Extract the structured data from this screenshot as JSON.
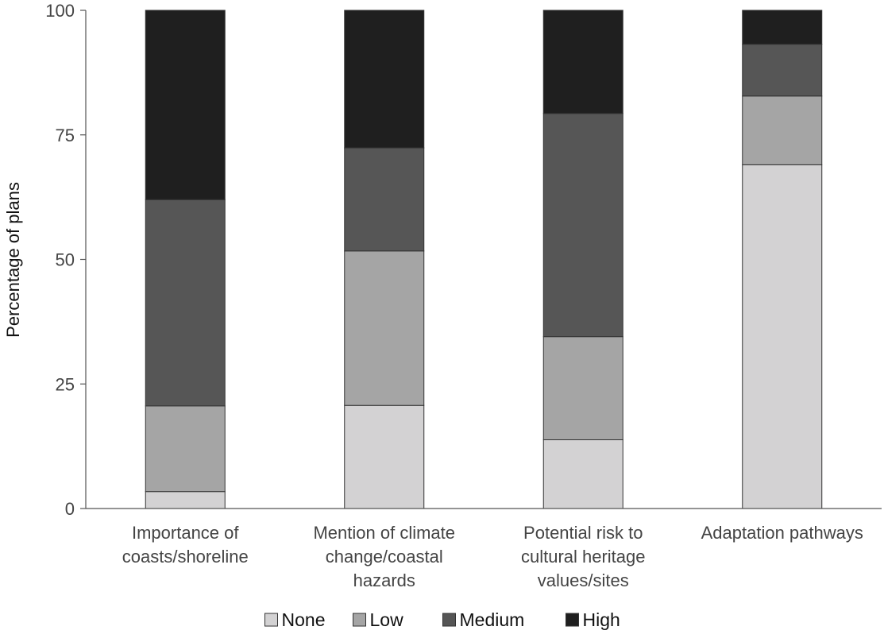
{
  "chart_data": {
    "type": "bar",
    "stacked": true,
    "title": "",
    "xlabel": "",
    "ylabel": "Percentage of plans",
    "ylim": [
      0,
      100
    ],
    "yticks": [
      "0",
      "25",
      "50",
      "75",
      "100"
    ],
    "grid": false,
    "legend_position": "bottom",
    "categories": [
      [
        "Importance of",
        "coasts/shoreline"
      ],
      [
        "Mention of climate",
        "change/coastal",
        "hazards"
      ],
      [
        "Potential risk to",
        "cultural heritage",
        "values/sites"
      ],
      [
        "Adaptation pathways"
      ]
    ],
    "series": [
      {
        "name": "None",
        "color": "#d3d2d3",
        "values": [
          3.4,
          20.7,
          13.8,
          69.0
        ]
      },
      {
        "name": "Low",
        "color": "#a5a5a5",
        "values": [
          17.2,
          31.0,
          20.7,
          13.8
        ]
      },
      {
        "name": "Medium",
        "color": "#565656",
        "values": [
          41.4,
          20.7,
          44.8,
          10.4
        ]
      },
      {
        "name": "High",
        "color": "#1f1f1f",
        "values": [
          38.0,
          27.6,
          20.7,
          6.8
        ]
      }
    ]
  }
}
